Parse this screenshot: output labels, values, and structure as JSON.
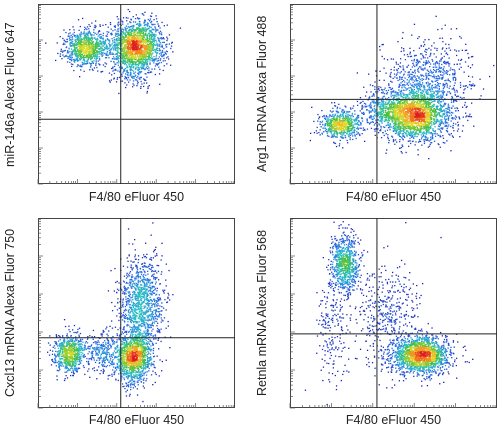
{
  "chart_data": [
    {
      "type": "scatter",
      "plot_style": "flow-cytometry density dot plot",
      "xlabel": "F4/80 eFluor 450",
      "ylabel": "miR-146a Alexa Fluor 647",
      "x_scale": "log",
      "y_scale": "log",
      "gate": {
        "x": 0.42,
        "y": 0.36
      },
      "populations": [
        {
          "x": 0.5,
          "y": 0.77,
          "spread_x": 0.07,
          "spread_y": 0.07,
          "count": 1700
        },
        {
          "x": 0.24,
          "y": 0.76,
          "spread_x": 0.055,
          "spread_y": 0.05,
          "count": 850
        },
        {
          "x": 0.48,
          "y": 0.63,
          "spread_x": 0.05,
          "spread_y": 0.06,
          "count": 150
        }
      ]
    },
    {
      "type": "scatter",
      "plot_style": "flow-cytometry density dot plot",
      "xlabel": "F4/80 eFluor 450",
      "ylabel": "Arg1 mRNA Alexa Fluor 488",
      "x_scale": "log",
      "y_scale": "log",
      "gate": {
        "x": 0.42,
        "y": 0.47
      },
      "populations": [
        {
          "x": 0.6,
          "y": 0.38,
          "spread_x": 0.085,
          "spread_y": 0.07,
          "count": 1900
        },
        {
          "x": 0.24,
          "y": 0.33,
          "spread_x": 0.05,
          "spread_y": 0.04,
          "count": 650
        },
        {
          "x": 0.66,
          "y": 0.55,
          "spread_x": 0.11,
          "spread_y": 0.12,
          "count": 900
        },
        {
          "x": 0.44,
          "y": 0.42,
          "spread_x": 0.05,
          "spread_y": 0.05,
          "count": 300
        }
      ]
    },
    {
      "type": "scatter",
      "plot_style": "flow-cytometry density dot plot",
      "xlabel": "F4/80 eFluor 450",
      "ylabel": "Cxcl13 mRNA Alexa Fluor 750",
      "x_scale": "log",
      "y_scale": "log",
      "gate": {
        "x": 0.42,
        "y": 0.37
      },
      "populations": [
        {
          "x": 0.48,
          "y": 0.27,
          "spread_x": 0.05,
          "spread_y": 0.07,
          "count": 1300
        },
        {
          "x": 0.52,
          "y": 0.56,
          "spread_x": 0.055,
          "spread_y": 0.12,
          "count": 1100
        },
        {
          "x": 0.16,
          "y": 0.29,
          "spread_x": 0.04,
          "spread_y": 0.05,
          "count": 700
        },
        {
          "x": 0.32,
          "y": 0.3,
          "spread_x": 0.04,
          "spread_y": 0.05,
          "count": 250
        }
      ]
    },
    {
      "type": "scatter",
      "plot_style": "flow-cytometry density dot plot",
      "xlabel": "F4/80 eFluor 450",
      "ylabel": "Retnla mRNA Alexa Fluor 568",
      "x_scale": "log",
      "y_scale": "log",
      "gate": {
        "x": 0.42,
        "y": 0.39
      },
      "populations": [
        {
          "x": 0.63,
          "y": 0.28,
          "spread_x": 0.07,
          "spread_y": 0.05,
          "count": 1700
        },
        {
          "x": 0.26,
          "y": 0.76,
          "spread_x": 0.035,
          "spread_y": 0.08,
          "count": 800
        },
        {
          "x": 0.46,
          "y": 0.5,
          "spread_x": 0.08,
          "spread_y": 0.14,
          "count": 450
        },
        {
          "x": 0.2,
          "y": 0.42,
          "spread_x": 0.04,
          "spread_y": 0.12,
          "count": 180
        }
      ]
    }
  ]
}
